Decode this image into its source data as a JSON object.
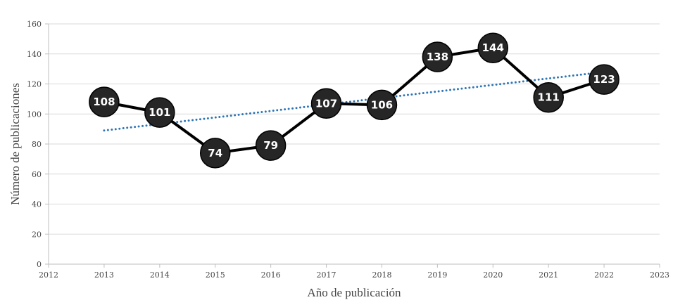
{
  "chart_data": {
    "type": "line",
    "title": "",
    "xlabel": "Año de publicación",
    "ylabel": "Número de publicaciones",
    "xlim": [
      2012,
      2023
    ],
    "ylim": [
      0,
      160
    ],
    "x_ticks": [
      "2012",
      "2013",
      "2014",
      "2015",
      "2016",
      "2017",
      "2018",
      "2019",
      "2020",
      "2021",
      "2022",
      "2023"
    ],
    "y_ticks": [
      "0",
      "20",
      "40",
      "60",
      "80",
      "100",
      "120",
      "140",
      "160"
    ],
    "grid": true,
    "legend": "none",
    "x": [
      2013,
      2014,
      2015,
      2016,
      2017,
      2018,
      2019,
      2020,
      2021,
      2022
    ],
    "series": [
      {
        "values": [
          108,
          101,
          74,
          79,
          107,
          106,
          138,
          144,
          111,
          123
        ],
        "data_labels": [
          "108",
          "101",
          "74",
          "79",
          "107",
          "106",
          "138",
          "144",
          "111",
          "123"
        ],
        "color": "#000000",
        "marker_color": "#262626"
      }
    ],
    "trendline": {
      "type": "linear",
      "style": "dotted",
      "color": "#2e75b6",
      "x": [
        2013,
        2022
      ],
      "y": [
        89,
        128
      ]
    }
  }
}
